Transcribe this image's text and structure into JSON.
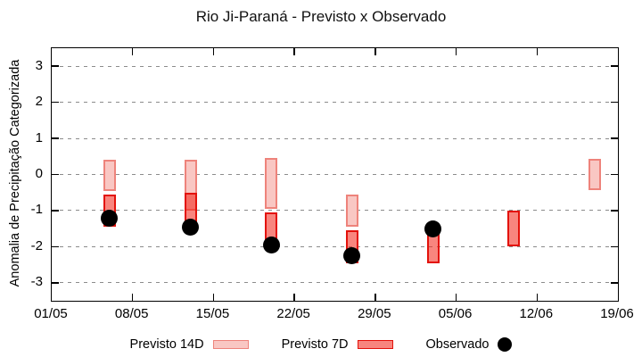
{
  "chart_data": {
    "type": "bar",
    "subtype": "range-bars-with-observed-points",
    "title": "Rio Ji-Paraná - Previsto x Observado",
    "xlabel": "",
    "ylabel": "Anomalia de Precipitação Categorizada",
    "ylim": [
      -3.5,
      3.5
    ],
    "yticks": [
      3,
      2,
      1,
      0,
      -1,
      -2,
      -3
    ],
    "xtick_labels": [
      "01/05",
      "08/05",
      "15/05",
      "22/05",
      "29/05",
      "05/06",
      "12/06",
      "19/06"
    ],
    "xtick_days": [
      0,
      7,
      14,
      21,
      28,
      35,
      42,
      49
    ],
    "x_total_days": 49,
    "grid": {
      "horizontal": true,
      "vertical": false,
      "style": "dashed",
      "color": "#8c8c8c"
    },
    "legend": [
      {
        "label": "Previsto 14D",
        "swatch": "range-14d"
      },
      {
        "label": "Previsto 7D",
        "swatch": "range-7d"
      },
      {
        "label": "Observado",
        "swatch": "dot"
      }
    ],
    "colors": {
      "previsto14_fill": "#f9c7c3",
      "previsto14_border": "#ee837b",
      "previsto7_fill": "#f88478",
      "previsto7_border": "#e3120b",
      "observado": "#000000",
      "axis": "#000000"
    },
    "groups": [
      {
        "date": "06/05",
        "day": 5,
        "previsto14": [
          -0.45,
          0.42
        ],
        "previsto7": [
          -1.45,
          -0.55
        ],
        "observado": -1.2
      },
      {
        "date": "13/05",
        "day": 12,
        "previsto14": [
          -1.0,
          0.42
        ],
        "previsto7": [
          -1.5,
          -0.5
        ],
        "observado": -1.45
      },
      {
        "date": "20/05",
        "day": 19,
        "previsto14": [
          -0.95,
          0.45
        ],
        "previsto7": [
          -1.95,
          -1.05
        ],
        "observado": -1.95
      },
      {
        "date": "27/05",
        "day": 26,
        "previsto14": [
          -1.45,
          -0.55
        ],
        "previsto7": [
          -2.45,
          -1.55
        ],
        "observado": -2.25
      },
      {
        "date": "03/06",
        "day": 33,
        "previsto14": null,
        "previsto7": [
          -2.45,
          -1.5
        ],
        "observado": -1.5
      },
      {
        "date": "10/06",
        "day": 40,
        "previsto14": null,
        "previsto7": [
          -2.0,
          -1.0
        ],
        "observado": null
      },
      {
        "date": "17/06",
        "day": 47,
        "previsto14": [
          -0.44,
          0.44
        ],
        "previsto7": null,
        "observado": null
      }
    ]
  }
}
